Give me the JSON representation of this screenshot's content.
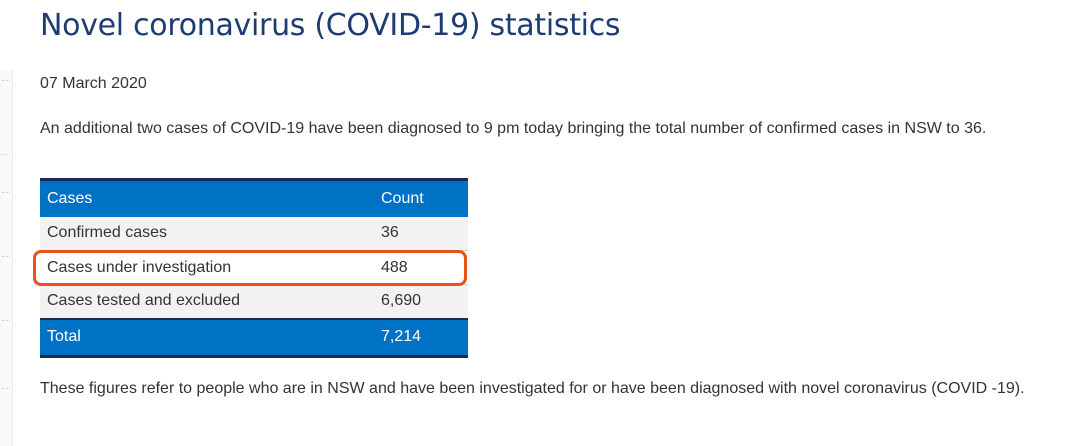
{
  "page": {
    "title": "Novel coronavirus (COVID-19) statistics",
    "date": "07 March 2020",
    "intro": "An additional two cases of COVID-19 have been diagnosed to 9 pm today bringing the total number of confirmed cases in NSW to 36.",
    "footnote": "These figures refer to people who are in NSW and have been investigated for or have been diagnosed with novel coronavirus (COVID -19)."
  },
  "table": {
    "headers": {
      "cases": "Cases",
      "count": "Count"
    },
    "rows": [
      {
        "label": "Confirmed cases",
        "count": "36"
      },
      {
        "label": "Cases under investigation",
        "count": "488"
      },
      {
        "label": "Cases tested and excluded",
        "count": "6,690"
      }
    ],
    "total": {
      "label": "Total",
      "count": "7,214"
    }
  },
  "highlight": {
    "row_label": "Cases under investigation",
    "color": "#e8521f"
  },
  "colors": {
    "title": "#1f3b73",
    "table_header": "#0072c6",
    "table_border": "#1a2a52"
  }
}
